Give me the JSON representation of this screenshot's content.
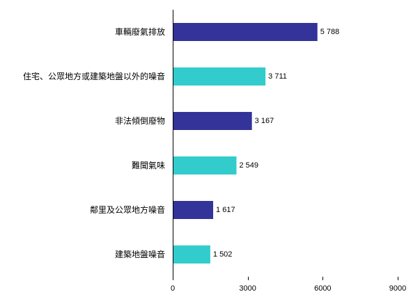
{
  "chart_data": {
    "type": "bar",
    "orientation": "horizontal",
    "title": "",
    "xlabel": "",
    "ylabel": "",
    "categories": [
      "車輛廢氣排放",
      "住宅、公眾地方或建築地盤以外的噪音",
      "非法傾倒廢物",
      "難聞氣味",
      "鄰里及公眾地方噪音",
      "建築地盤噪音"
    ],
    "values": [
      5788,
      3711,
      3167,
      2549,
      1617,
      1502
    ],
    "value_labels": [
      "5 788",
      "3 711",
      "3 167",
      "2 549",
      "1 617",
      "1 502"
    ],
    "bar_colors": [
      "#333399",
      "#33CCCC",
      "#333399",
      "#33CCCC",
      "#333399",
      "#33CCCC"
    ],
    "xlim": [
      0,
      9000
    ],
    "xticks": [
      0,
      3000,
      6000,
      9000
    ],
    "xtick_labels": [
      "0",
      "3000",
      "6000",
      "9000"
    ],
    "grid": false,
    "legend": "none"
  }
}
